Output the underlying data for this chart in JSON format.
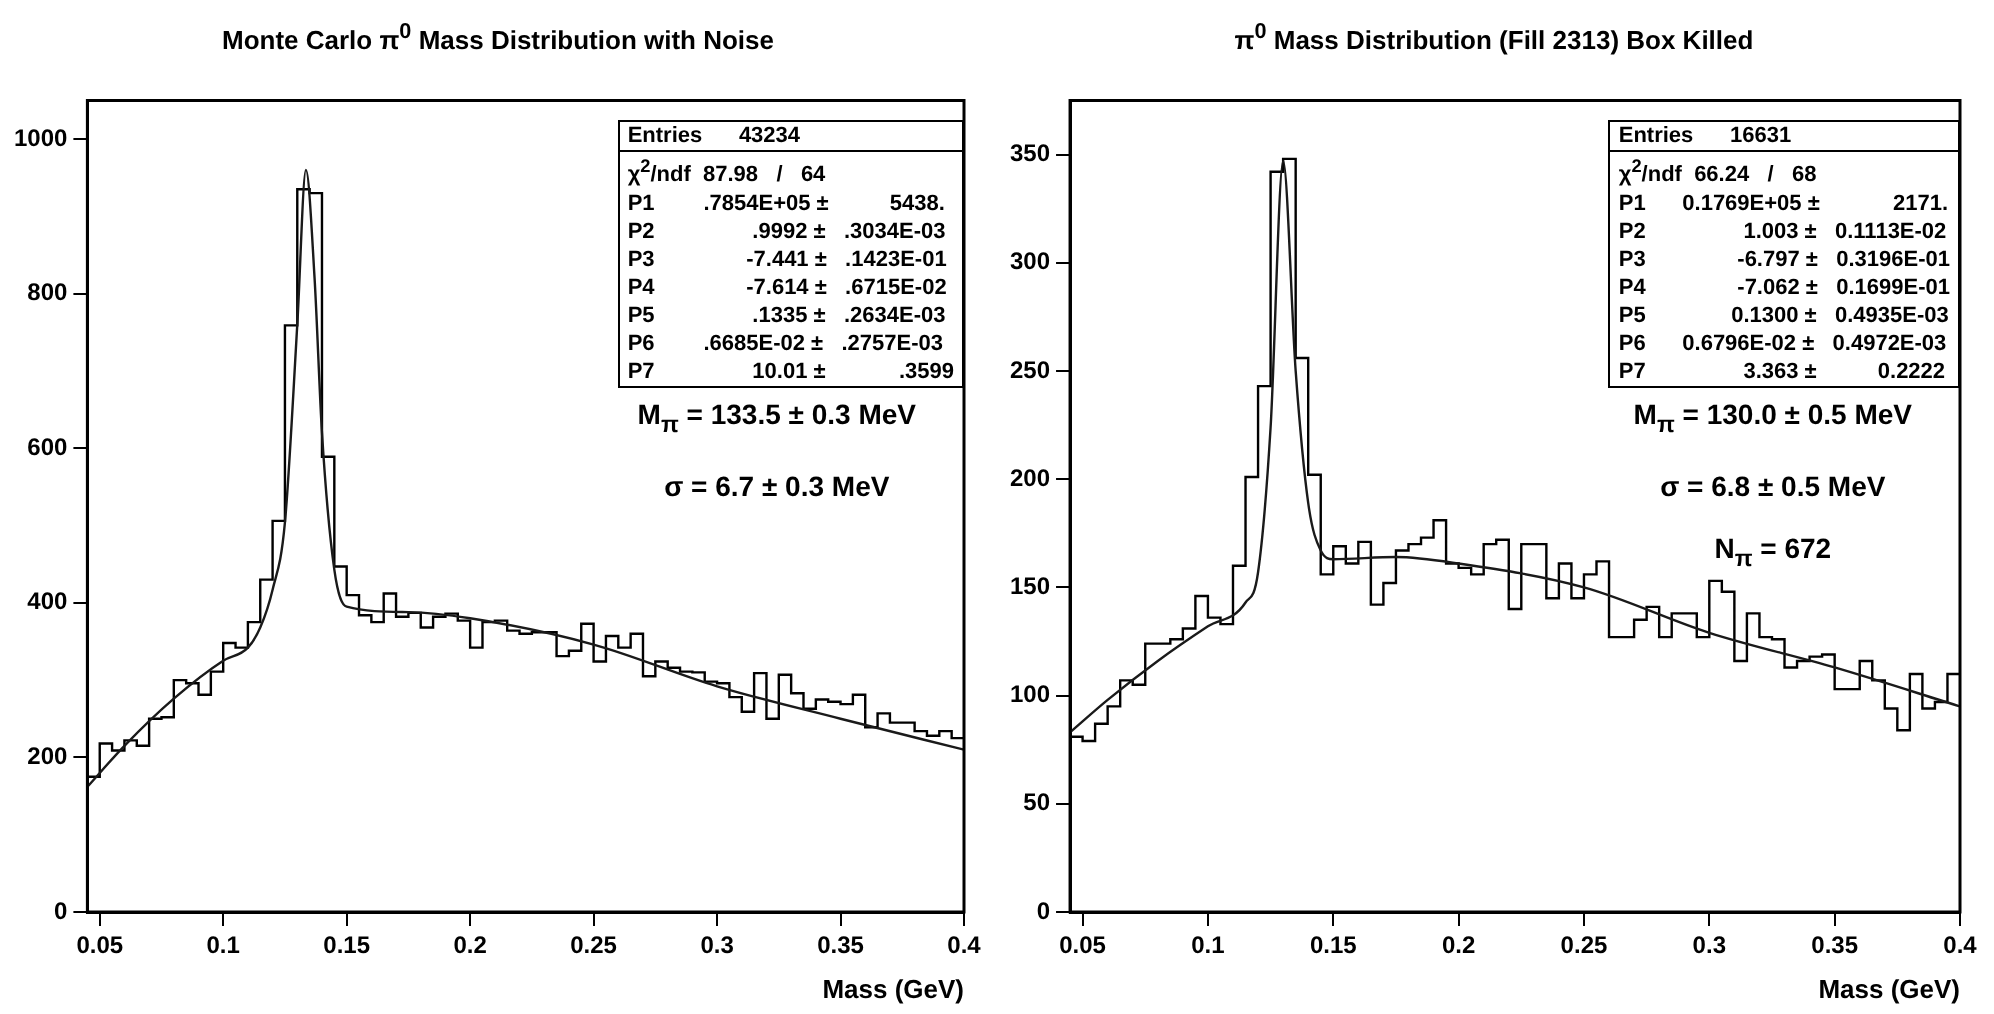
{
  "chart_data": [
    {
      "type": "histogram",
      "title": "Monte Carlo π$^{0}$ Mass Distribution with Noise",
      "xlabel": "Mass (GeV)",
      "bins": [
        0.045,
        0.05,
        0.055,
        0.06,
        0.065,
        0.07,
        0.075,
        0.08,
        0.085,
        0.09,
        0.095,
        0.1,
        0.105,
        0.11,
        0.115,
        0.12,
        0.125,
        0.13,
        0.135,
        0.14,
        0.145,
        0.15,
        0.155,
        0.16,
        0.165,
        0.17,
        0.175,
        0.18,
        0.185,
        0.19,
        0.195,
        0.2,
        0.205,
        0.21,
        0.215,
        0.22,
        0.225,
        0.23,
        0.235,
        0.24,
        0.245,
        0.25,
        0.255,
        0.26,
        0.265,
        0.27,
        0.275,
        0.28,
        0.285,
        0.29,
        0.295,
        0.3,
        0.305,
        0.31,
        0.315,
        0.32,
        0.325,
        0.33,
        0.335,
        0.34,
        0.345,
        0.35,
        0.355,
        0.36,
        0.365,
        0.37,
        0.375,
        0.38,
        0.385,
        0.39,
        0.395,
        0.4
      ],
      "color": "#000000",
      "values": [
        175,
        218,
        209,
        222,
        215,
        250,
        252,
        300,
        296,
        281,
        311,
        348,
        342,
        375,
        430,
        506,
        759,
        935,
        930,
        589,
        447,
        410,
        384,
        375,
        412,
        382,
        387,
        368,
        382,
        386,
        377,
        342,
        375,
        377,
        364,
        360,
        362,
        362,
        331,
        338,
        373,
        324,
        357,
        342,
        360,
        305,
        324,
        316,
        311,
        310,
        298,
        296,
        278,
        259,
        309,
        250,
        307,
        283,
        263,
        275,
        272,
        269,
        281,
        239,
        257,
        245,
        245,
        234,
        228,
        234,
        225
      ],
      "series": [
        {
          "type": "line",
          "color": "#1a1a1a",
          "x": [
            0.045,
            0.06,
            0.08,
            0.1,
            0.11,
            0.115,
            0.12,
            0.125,
            0.13,
            0.1335,
            0.137,
            0.14,
            0.145,
            0.15,
            0.175,
            0.2,
            0.25,
            0.3,
            0.35,
            0.4
          ],
          "values": [
            162,
            215,
            276,
            325,
            342,
            368,
            417,
            504,
            760,
            960,
            820,
            620,
            443,
            395,
            388,
            380,
            346,
            292,
            250,
            210
          ]
        }
      ],
      "xlim": [
        0.045,
        0.4
      ],
      "ylim": [
        0,
        1050
      ],
      "xticks": [
        0.05,
        0.1,
        0.15,
        0.2,
        0.25,
        0.3,
        0.35,
        0.4
      ],
      "yticks": [
        0,
        200,
        400,
        600,
        800,
        1000
      ],
      "annotations": [
        "Entries      43234",
        "χ$^{2}$/ndf  87.98   /   64",
        "P1        .7854E+05 ±          5438.",
        "P2                .9992 ±   .3034E-03",
        "P3               -7.441 ±   .1423E-01",
        "P4               -7.614 ±   .6715E-02",
        "P5                .1335 ±   .2634E-03",
        "P6        .6685E-02 ±   .2757E-03",
        "P7                10.01 ±            .3599",
        "M$_{π}$ = 133.5 ± 0.3 MeV",
        "σ = 6.7 ± 0.3 MeV"
      ]
    },
    {
      "type": "histogram",
      "title": "π$^{0}$ Mass Distribution (Fill 2313)   Box Killed",
      "xlabel": "Mass (GeV)",
      "bins": [
        0.045,
        0.05,
        0.055,
        0.06,
        0.065,
        0.07,
        0.075,
        0.08,
        0.085,
        0.09,
        0.095,
        0.1,
        0.105,
        0.11,
        0.115,
        0.12,
        0.125,
        0.13,
        0.135,
        0.14,
        0.145,
        0.15,
        0.155,
        0.16,
        0.165,
        0.17,
        0.175,
        0.18,
        0.185,
        0.19,
        0.195,
        0.2,
        0.205,
        0.21,
        0.215,
        0.22,
        0.225,
        0.23,
        0.235,
        0.24,
        0.245,
        0.25,
        0.255,
        0.26,
        0.265,
        0.27,
        0.275,
        0.28,
        0.285,
        0.29,
        0.295,
        0.3,
        0.305,
        0.31,
        0.315,
        0.32,
        0.325,
        0.33,
        0.335,
        0.34,
        0.345,
        0.35,
        0.355,
        0.36,
        0.365,
        0.37,
        0.375,
        0.38,
        0.385,
        0.39,
        0.395,
        0.4
      ],
      "color": "#000000",
      "values": [
        81,
        79,
        87,
        95,
        107,
        105,
        124,
        124,
        126,
        131,
        146,
        136,
        133,
        160,
        201,
        243,
        342,
        348,
        256,
        202,
        156,
        169,
        161,
        171,
        142,
        152,
        167,
        170,
        173,
        181,
        161,
        159,
        156,
        170,
        172,
        140,
        170,
        170,
        145,
        161,
        145,
        156,
        162,
        127,
        127,
        135,
        141,
        127,
        138,
        138,
        127,
        153,
        148,
        116,
        138,
        127,
        126,
        113,
        116,
        118,
        119,
        103,
        103,
        116,
        107,
        94,
        84,
        110,
        94,
        97,
        110
      ],
      "series": [
        {
          "type": "line",
          "color": "#1a1a1a",
          "x": [
            0.045,
            0.06,
            0.08,
            0.1,
            0.115,
            0.12,
            0.125,
            0.13,
            0.135,
            0.14,
            0.145,
            0.15,
            0.175,
            0.2,
            0.25,
            0.3,
            0.35,
            0.4
          ],
          "values": [
            83,
            98,
            116,
            132,
            143,
            157,
            224,
            347,
            250,
            189,
            167,
            163,
            164,
            161,
            150,
            129,
            113,
            95
          ]
        }
      ],
      "xlim": [
        0.045,
        0.4
      ],
      "ylim": [
        0,
        375
      ],
      "xticks": [
        0.05,
        0.1,
        0.15,
        0.2,
        0.25,
        0.3,
        0.35,
        0.4
      ],
      "yticks": [
        0,
        50,
        100,
        150,
        200,
        250,
        300,
        350
      ],
      "annotations": [
        "Entries      16631",
        "χ$^{2}$/ndf  66.24   /   68",
        "P1      0.1769E+05 ±            2171.",
        "P2                1.003 ±   0.1113E-02",
        "P3               -6.797 ±   0.3196E-01",
        "P4               -7.062 ±   0.1699E-01",
        "P5              0.1300 ±   0.4935E-03",
        "P6      0.6796E-02 ±   0.4972E-03",
        "P7                3.363 ±          0.2222",
        "M$_{π}$ = 130.0 ± 0.5 MeV",
        "σ = 6.8 ± 0.5 MeV",
        "N$_{π}$ = 672"
      ]
    }
  ]
}
